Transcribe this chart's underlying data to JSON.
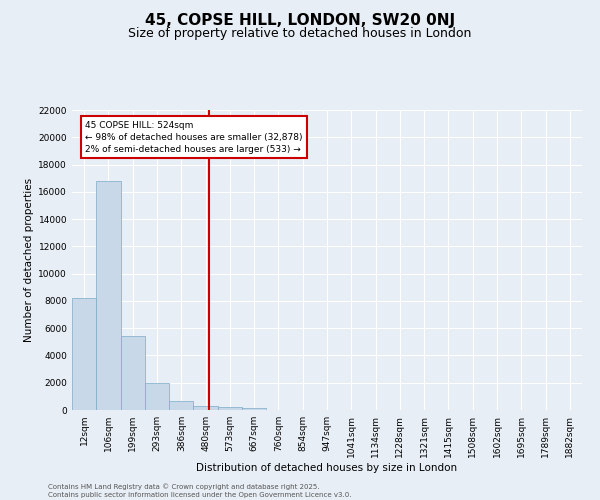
{
  "title1": "45, COPSE HILL, LONDON, SW20 0NJ",
  "title2": "Size of property relative to detached houses in London",
  "xlabel": "Distribution of detached houses by size in London",
  "ylabel": "Number of detached properties",
  "bar_categories": [
    "12sqm",
    "106sqm",
    "199sqm",
    "293sqm",
    "386sqm",
    "480sqm",
    "573sqm",
    "667sqm",
    "760sqm",
    "854sqm",
    "947sqm",
    "1041sqm",
    "1134sqm",
    "1228sqm",
    "1321sqm",
    "1415sqm",
    "1508sqm",
    "1602sqm",
    "1695sqm",
    "1789sqm",
    "1882sqm"
  ],
  "bar_values": [
    8200,
    16800,
    5400,
    1950,
    650,
    330,
    200,
    130,
    0,
    0,
    0,
    0,
    0,
    0,
    0,
    0,
    0,
    0,
    0,
    0,
    0
  ],
  "bar_color": "#c8d8e8",
  "bar_edgecolor": "#7aaac8",
  "ylim": [
    0,
    22000
  ],
  "yticks": [
    0,
    2000,
    4000,
    6000,
    8000,
    10000,
    12000,
    14000,
    16000,
    18000,
    20000,
    22000
  ],
  "vline_x": 5.15,
  "vline_color": "#cc0000",
  "annotation_box_text": "45 COPSE HILL: 524sqm\n← 98% of detached houses are smaller (32,878)\n2% of semi-detached houses are larger (533) →",
  "annotation_box_color": "#cc0000",
  "background_color": "#e8eef5",
  "grid_color": "#ffffff",
  "footer_text": "Contains HM Land Registry data © Crown copyright and database right 2025.\nContains public sector information licensed under the Open Government Licence v3.0.",
  "title_fontsize": 11,
  "subtitle_fontsize": 9,
  "axis_fontsize": 7.5,
  "tick_fontsize": 6.5,
  "annotation_fontsize": 6.5
}
